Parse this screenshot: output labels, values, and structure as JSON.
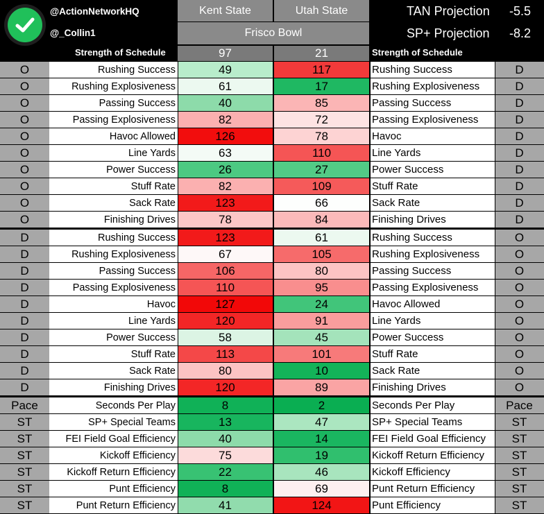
{
  "header": {
    "handle1": "@ActionNetworkHQ",
    "handle2": "@_Collin1",
    "team_a": "Kent State",
    "team_b": "Utah State",
    "bowl": "Frisco Bowl",
    "proj1_label": "TAN Projection",
    "proj1_value": "-5.5",
    "proj2_label": "SP+ Projection",
    "proj2_value": "-8.2",
    "icons": {
      "logo": "check-circle-icon"
    },
    "colors": {
      "logo_green": "#20c05a"
    }
  },
  "sos": {
    "left_label": "Strength of Schedule",
    "right_label": "Strength of Schedule",
    "team_a": "97",
    "team_b": "21"
  },
  "rows": [
    {
      "ls": "O",
      "ln": "Rushing Success",
      "a": "49",
      "ac": "#b8eccb",
      "b": "117",
      "bc": "#f23a3a",
      "rn": "Rushing Success",
      "rs": "D"
    },
    {
      "ls": "O",
      "ln": "Rushing Explosiveness",
      "a": "61",
      "ac": "#ecf9f0",
      "b": "17",
      "bc": "#1fb862",
      "rn": "Rushing Explosiveness",
      "rs": "D"
    },
    {
      "ls": "O",
      "ln": "Passing Success",
      "a": "40",
      "ac": "#8ddbaa",
      "b": "85",
      "bc": "#fbb5b5",
      "rn": "Passing Success",
      "rs": "D"
    },
    {
      "ls": "O",
      "ln": "Passing Explosiveness",
      "a": "82",
      "ac": "#fbb0b0",
      "b": "72",
      "bc": "#fde3e3",
      "rn": "Passing Explosiveness",
      "rs": "D"
    },
    {
      "ls": "O",
      "ln": "Havoc Allowed",
      "a": "126",
      "ac": "#f20d0d",
      "b": "78",
      "bc": "#fdd3d3",
      "rn": "Havoc",
      "rs": "D"
    },
    {
      "ls": "O",
      "ln": "Line Yards",
      "a": "63",
      "ac": "#f4fbf6",
      "b": "110",
      "bc": "#f55555",
      "rn": "Line Yards",
      "rs": "D"
    },
    {
      "ls": "O",
      "ln": "Power Success",
      "a": "26",
      "ac": "#4cc982",
      "b": "27",
      "bc": "#52cb86",
      "rn": "Power Success",
      "rs": "D"
    },
    {
      "ls": "O",
      "ln": "Stuff Rate",
      "a": "82",
      "ac": "#fbb0b0",
      "b": "109",
      "bc": "#f55a5a",
      "rn": "Stuff Rate",
      "rs": "D"
    },
    {
      "ls": "O",
      "ln": "Sack Rate",
      "a": "123",
      "ac": "#f21a1a",
      "b": "66",
      "bc": "#fdfefd",
      "rn": "Sack Rate",
      "rs": "D"
    },
    {
      "ls": "O",
      "ln": "Finishing Drives",
      "a": "78",
      "ac": "#fcc7c7",
      "b": "84",
      "bc": "#fbbaba",
      "rn": "Finishing Drives",
      "rs": "D"
    },
    {
      "ls": "D",
      "ln": "Rushing Success",
      "a": "123",
      "ac": "#f21a1a",
      "b": "61",
      "bc": "#ecf9f0",
      "rn": "Rushing Success",
      "rs": "O"
    },
    {
      "ls": "D",
      "ln": "Rushing Explosiveness",
      "a": "67",
      "ac": "#fef8f8",
      "b": "105",
      "bc": "#f66b6b",
      "rn": "Rushing Explosiveness",
      "rs": "O"
    },
    {
      "ls": "D",
      "ln": "Passing Success",
      "a": "106",
      "ac": "#f66666",
      "b": "80",
      "bc": "#fcc3c3",
      "rn": "Passing Success",
      "rs": "O"
    },
    {
      "ls": "D",
      "ln": "Passing Explosiveness",
      "a": "110",
      "ac": "#f55555",
      "b": "95",
      "bc": "#f98e8e",
      "rn": "Passing Explosiveness",
      "rs": "O"
    },
    {
      "ls": "D",
      "ln": "Havoc",
      "a": "127",
      "ac": "#f20808",
      "b": "24",
      "bc": "#41c57a",
      "rn": "Havoc Allowed",
      "rs": "O"
    },
    {
      "ls": "D",
      "ln": "Line Yards",
      "a": "120",
      "ac": "#f32626",
      "b": "91",
      "bc": "#fa9d9d",
      "rn": "Line Yards",
      "rs": "O"
    },
    {
      "ls": "D",
      "ln": "Power Success",
      "a": "58",
      "ac": "#dcf4e4",
      "b": "45",
      "bc": "#a4e3bb",
      "rn": "Power Success",
      "rs": "O"
    },
    {
      "ls": "D",
      "ln": "Stuff Rate",
      "a": "113",
      "ac": "#f44848",
      "b": "101",
      "bc": "#f77a7a",
      "rn": "Stuff Rate",
      "rs": "O"
    },
    {
      "ls": "D",
      "ln": "Sack Rate",
      "a": "80",
      "ac": "#fcc3c3",
      "b": "10",
      "bc": "#13b359",
      "rn": "Sack Rate",
      "rs": "O"
    },
    {
      "ls": "D",
      "ln": "Finishing Drives",
      "a": "120",
      "ac": "#f32626",
      "b": "89",
      "bc": "#faa4a4",
      "rn": "Finishing Drives",
      "rs": "O"
    },
    {
      "ls": "Pace",
      "ln": "Seconds Per Play",
      "a": "8",
      "ac": "#10b157",
      "b": "2",
      "bc": "#0aae52",
      "rn": "Seconds Per Play",
      "rs": "Pace"
    },
    {
      "ls": "ST",
      "ln": "SP+ Special Teams",
      "a": "13",
      "ac": "#18b55e",
      "b": "47",
      "bc": "#abe6c0",
      "rn": "SP+ Special Teams",
      "rs": "ST"
    },
    {
      "ls": "ST",
      "ln": "FEI Field Goal Efficiency",
      "a": "40",
      "ac": "#8ddbaa",
      "b": "14",
      "bc": "#1ab660",
      "rn": "FEI Field Goal Efficiency",
      "rs": "ST"
    },
    {
      "ls": "ST",
      "ln": "Kickoff Efficiency",
      "a": "75",
      "ac": "#fcdbdb",
      "b": "19",
      "bc": "#30bf6e",
      "rn": "Kickoff Return Efficiency",
      "rs": "ST"
    },
    {
      "ls": "ST",
      "ln": "Kickoff Return Efficiency",
      "a": "22",
      "ac": "#38c273",
      "b": "46",
      "bc": "#a8e5be",
      "rn": "Kickoff Efficiency",
      "rs": "ST"
    },
    {
      "ls": "ST",
      "ln": "Punt Efficiency",
      "a": "8",
      "ac": "#10b157",
      "b": "69",
      "bc": "#fdf0f0",
      "rn": "Punt Return Efficiency",
      "rs": "ST"
    },
    {
      "ls": "ST",
      "ln": "Punt Return Efficiency",
      "a": "41",
      "ac": "#91dcad",
      "b": "124",
      "bc": "#f21515",
      "rn": "Punt Efficiency",
      "rs": "ST"
    }
  ]
}
